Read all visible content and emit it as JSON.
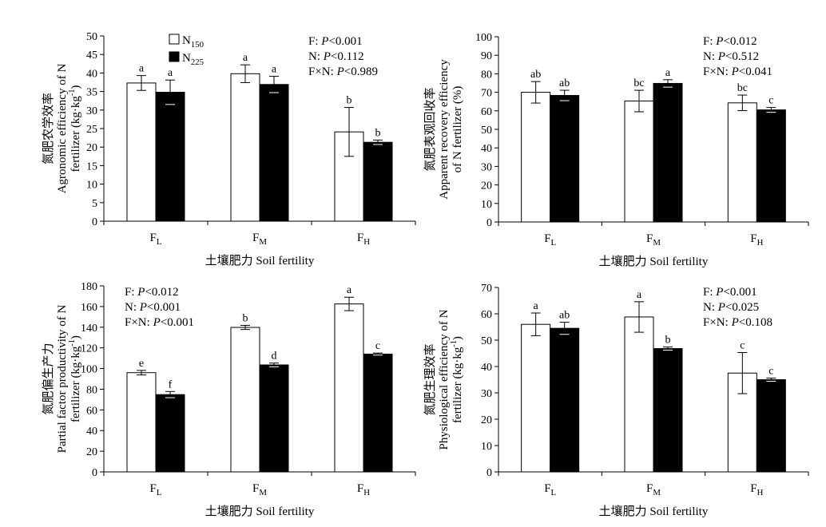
{
  "chart_data": [
    {
      "type": "bar",
      "categories": [
        "F|L",
        "F|M",
        "F|H"
      ],
      "xlabel": "土壤肥力 Soil fertility",
      "ylabel_lines": [
        "氮肥农学效率",
        "Agronomic efficiency of N",
        "fertilizer (kg·kg^-1)"
      ],
      "ylim": [
        0,
        50
      ],
      "yticks": [
        0,
        5,
        10,
        15,
        20,
        25,
        30,
        35,
        40,
        45,
        50
      ],
      "series": [
        {
          "name": "N|150",
          "values": [
            37.3,
            39.8,
            24.1
          ],
          "errors": [
            2.0,
            2.4,
            6.6
          ],
          "letters": [
            "a",
            "a",
            "b"
          ],
          "color": "#ffffff"
        },
        {
          "name": "N|225",
          "values": [
            34.8,
            36.9,
            21.3
          ],
          "errors": [
            3.3,
            2.2,
            0.6
          ],
          "letters": [
            "a",
            "a",
            "b"
          ],
          "color": "#000000"
        }
      ],
      "stats": [
        {
          "prefix": "F: ",
          "p": "P",
          "rest": "<0.001"
        },
        {
          "prefix": "N: ",
          "p": "P",
          "rest": "<0.112"
        },
        {
          "prefix": "F×N: ",
          "p": "P",
          "rest": "<0.989"
        }
      ],
      "show_legend": true
    },
    {
      "type": "bar",
      "categories": [
        "F|L",
        "F|M",
        "F|H"
      ],
      "xlabel": "土壤肥力 Soil fertility",
      "ylabel_lines": [
        "氮肥表观回收率",
        "Apparent recovery efficiency",
        "of N fertilizer (%)"
      ],
      "ylim": [
        0,
        100
      ],
      "yticks": [
        0,
        10,
        20,
        30,
        40,
        50,
        60,
        70,
        80,
        90,
        100
      ],
      "series": [
        {
          "name": "N|150",
          "values": [
            70.0,
            65.3,
            64.3
          ],
          "errors": [
            5.8,
            5.8,
            4.2
          ],
          "letters": [
            "ab",
            "bc",
            "bc"
          ],
          "color": "#ffffff"
        },
        {
          "name": "N|225",
          "values": [
            68.3,
            74.8,
            60.5
          ],
          "errors": [
            2.8,
            2.0,
            1.3
          ],
          "letters": [
            "ab",
            "a",
            "c"
          ],
          "color": "#000000"
        }
      ],
      "stats": [
        {
          "prefix": "F: ",
          "p": "P",
          "rest": "<0.012"
        },
        {
          "prefix": "N: ",
          "p": "P",
          "rest": "<0.512"
        },
        {
          "prefix": "F×N: ",
          "p": "P",
          "rest": "<0.041"
        }
      ],
      "show_legend": false
    },
    {
      "type": "bar",
      "categories": [
        "F|L",
        "F|M",
        "F|H"
      ],
      "xlabel": "土壤肥力 Soil fertility",
      "ylabel_lines": [
        "氮肥偏生产力",
        "Partial factor productivity of N",
        "fertilizer (kg·kg^-1)"
      ],
      "ylim": [
        0,
        180
      ],
      "yticks": [
        0,
        20,
        40,
        60,
        80,
        100,
        120,
        140,
        160,
        180
      ],
      "series": [
        {
          "name": "N|150",
          "values": [
            96.0,
            139.8,
            162.5
          ],
          "errors": [
            2.2,
            2.0,
            6.5
          ],
          "letters": [
            "e",
            "b",
            "a"
          ],
          "color": "#ffffff"
        },
        {
          "name": "N|225",
          "values": [
            74.8,
            103.5,
            114.0
          ],
          "errors": [
            3.0,
            1.8,
            1.0
          ],
          "letters": [
            "f",
            "d",
            "c"
          ],
          "color": "#000000"
        }
      ],
      "stats": [
        {
          "prefix": "F: ",
          "p": "P",
          "rest": "<0.012"
        },
        {
          "prefix": "N: ",
          "p": "P",
          "rest": "<0.001"
        },
        {
          "prefix": "F×N: ",
          "p": "P",
          "rest": "<0.001"
        }
      ],
      "show_legend": false
    },
    {
      "type": "bar",
      "categories": [
        "F|L",
        "F|M",
        "F|H"
      ],
      "xlabel": "土壤肥力 Soil fertility",
      "ylabel_lines": [
        "氮肥生理效率",
        "Physiological efficiency of N",
        "fertilizer (kg·kg^-1)"
      ],
      "ylim": [
        0,
        70
      ],
      "yticks": [
        0,
        10,
        20,
        30,
        40,
        50,
        60,
        70
      ],
      "series": [
        {
          "name": "N|150",
          "values": [
            56.0,
            58.8,
            37.5
          ],
          "errors": [
            4.3,
            5.8,
            7.8
          ],
          "letters": [
            "a",
            "a",
            "c"
          ],
          "color": "#ffffff"
        },
        {
          "name": "N|225",
          "values": [
            54.5,
            46.8,
            35.0
          ],
          "errors": [
            2.3,
            0.6,
            0.6
          ],
          "letters": [
            "ab",
            "b",
            "c"
          ],
          "color": "#000000"
        }
      ],
      "stats": [
        {
          "prefix": "F: ",
          "p": "P",
          "rest": "<0.001"
        },
        {
          "prefix": "N: ",
          "p": "P",
          "rest": "<0.025"
        },
        {
          "prefix": "F×N: ",
          "p": "P",
          "rest": "<0.108"
        }
      ],
      "show_legend": false
    }
  ]
}
